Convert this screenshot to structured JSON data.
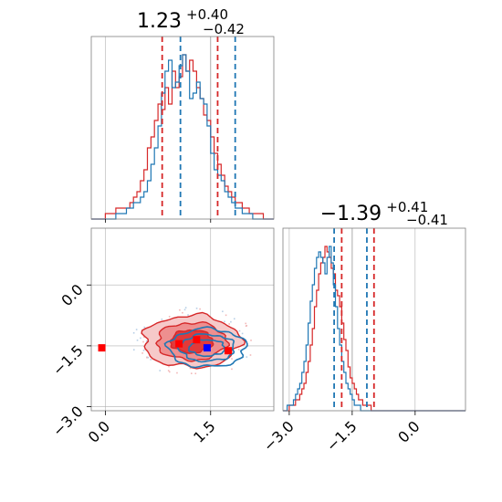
{
  "chart_data": {
    "type": "corner",
    "parameters": [
      {
        "title_value": "1.23",
        "title_sup": "+0.40",
        "title_sub": "−0.42",
        "range": [
          -0.2,
          2.4
        ],
        "ticks": [
          0.0,
          1.5
        ],
        "tick_labels": [
          "0.0",
          "1.5"
        ],
        "truth": 1.5,
        "quantiles": {
          "red": [
            0.81,
            1.6
          ],
          "blue": [
            1.07,
            1.85
          ]
        },
        "hist_red": {
          "start": -0.2,
          "step": 0.05,
          "values": [
            0,
            0,
            0,
            0,
            1,
            1,
            1,
            2,
            2,
            2,
            2,
            3,
            4,
            5,
            7,
            9,
            13,
            15,
            18,
            21,
            20,
            24,
            21,
            27,
            24,
            26,
            30,
            27,
            29,
            27,
            24,
            22,
            19,
            18,
            15,
            12,
            10,
            8,
            6,
            5,
            4,
            3,
            3,
            2,
            2,
            1,
            1,
            1,
            1,
            0,
            0,
            0
          ]
        },
        "hist_blue": {
          "start": -0.2,
          "step": 0.05,
          "values": [
            0,
            0,
            0,
            0,
            0,
            0,
            0,
            1,
            1,
            1,
            2,
            2,
            3,
            3,
            4,
            5,
            7,
            10,
            13,
            17,
            23,
            27,
            29,
            24,
            25,
            28,
            30,
            27,
            22,
            23,
            25,
            22,
            21,
            17,
            12,
            9,
            8,
            7,
            5,
            4,
            3,
            2,
            2,
            1,
            1,
            1,
            0,
            0,
            0,
            0,
            0,
            0
          ]
        }
      },
      {
        "title_value": "−1.39",
        "title_sup": "+0.41",
        "title_sub": "−0.41",
        "range": [
          -3.15,
          1.2
        ],
        "ticks": [
          -3.0,
          -1.5,
          0.0
        ],
        "tick_labels": [
          "−3.0",
          "−1.5",
          "0.0"
        ],
        "truth": -1.5,
        "quantiles": {
          "red": [
            -1.75,
            -0.98
          ],
          "blue": [
            -1.93,
            -1.15
          ]
        },
        "hist_red": {
          "start": -3.15,
          "step": 0.05,
          "values": [
            0,
            0,
            0,
            1,
            1,
            1,
            2,
            2,
            3,
            4,
            5,
            7,
            9,
            12,
            15,
            19,
            22,
            25,
            27,
            28,
            30,
            29,
            28,
            26,
            25,
            22,
            21,
            19,
            16,
            13,
            11,
            8,
            6,
            5,
            4,
            3,
            2,
            2,
            1,
            1,
            1,
            1,
            0,
            0,
            0,
            0,
            0,
            0,
            0,
            0,
            0,
            0,
            0,
            0,
            0,
            0,
            0,
            0,
            0,
            0,
            0,
            0,
            0,
            0,
            0,
            0,
            0,
            0,
            0,
            0,
            0,
            0,
            0,
            0,
            0,
            0,
            0,
            0,
            0,
            0,
            0,
            0,
            0,
            0,
            0,
            0,
            0
          ]
        },
        "hist_blue": {
          "start": -3.15,
          "step": 0.05,
          "values": [
            0,
            0,
            1,
            1,
            1,
            2,
            3,
            4,
            5,
            7,
            9,
            12,
            16,
            20,
            23,
            26,
            28,
            29,
            28,
            27,
            25,
            28,
            30,
            27,
            23,
            19,
            15,
            12,
            9,
            7,
            5,
            4,
            3,
            2,
            1,
            1,
            1,
            0,
            0,
            0,
            0,
            0,
            0,
            0,
            0,
            0,
            0,
            0,
            0,
            0,
            0,
            0,
            0,
            0,
            0,
            0,
            0,
            0,
            0,
            0,
            0,
            0,
            0,
            0,
            0,
            0,
            0,
            0,
            0,
            0,
            0,
            0,
            0,
            0,
            0,
            0,
            0,
            0,
            0,
            0,
            0,
            0,
            0,
            0,
            0,
            0,
            0
          ]
        }
      }
    ],
    "joint": {
      "x_param": 0,
      "y_param": 1,
      "ylim": [
        -3.1,
        1.4
      ],
      "red_mean": [
        1.23,
        -1.39
      ],
      "blue_mean": [
        1.45,
        -1.55
      ],
      "red_contours": [
        {
          "sx": 0.26,
          "sy": 0.28
        },
        {
          "sx": 0.43,
          "sy": 0.46
        },
        {
          "sx": 0.6,
          "sy": 0.64
        }
      ],
      "blue_contours": [
        {
          "sx": 0.22,
          "sy": 0.2
        },
        {
          "sx": 0.34,
          "sy": 0.33
        },
        {
          "sx": 0.48,
          "sy": 0.47
        }
      ],
      "red_markers": [
        [
          -0.05,
          -1.55
        ],
        [
          1.75,
          -1.62
        ],
        [
          1.05,
          -1.45
        ],
        [
          1.3,
          -1.35
        ]
      ],
      "blue_markers": [
        [
          1.45,
          -1.55
        ]
      ]
    },
    "colors": {
      "red": "#d62728",
      "blue": "#1f77b4",
      "grid": "#b0b0b0",
      "truth": "#9e9e9e"
    }
  }
}
